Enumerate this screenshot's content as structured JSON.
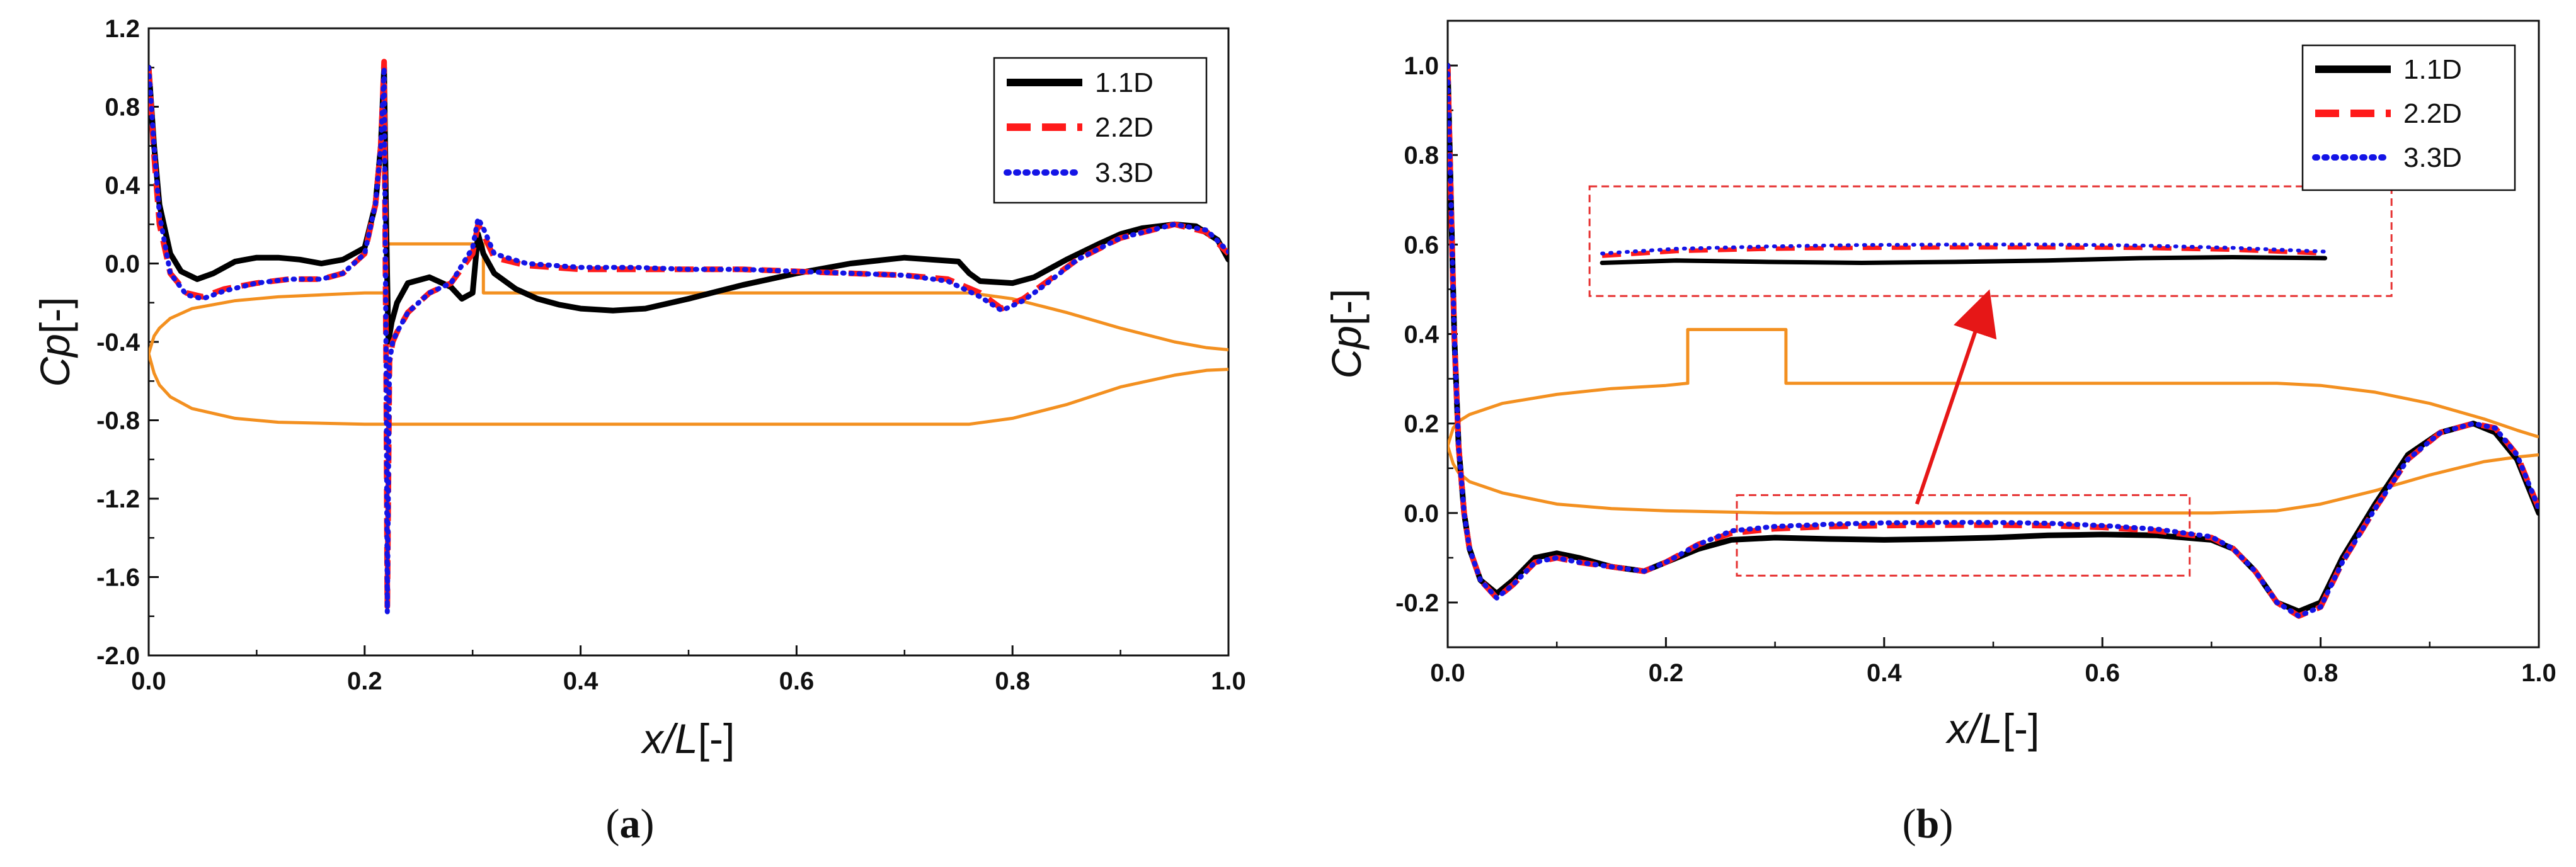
{
  "chart_data": [
    {
      "type": "line",
      "panel_label": "a",
      "xlabel_main": "x/L",
      "xlabel_unit": "[-]",
      "ylabel_main": "Cp",
      "ylabel_unit": "[-]",
      "xlim": [
        0.0,
        1.0
      ],
      "ylim": [
        -2.0,
        1.2
      ],
      "xticks": [
        0.0,
        0.2,
        0.4,
        0.6,
        0.8,
        1.0
      ],
      "xtick_labels": [
        "0.0",
        "0.2",
        "0.4",
        "0.6",
        "0.8",
        "1.0"
      ],
      "yticks": [
        -2.0,
        -1.6,
        -1.2,
        -0.8,
        -0.4,
        0.0,
        0.4,
        0.8,
        1.2
      ],
      "ytick_labels": [
        "-2.0",
        "-1.6",
        "-1.2",
        "-0.8",
        "-0.4",
        "0.0",
        "0.4",
        "0.8",
        "1.2"
      ],
      "legend_position": "top-right",
      "series": [
        {
          "name": "1.1D",
          "color": "#000000",
          "style": "solid",
          "x": [
            0.0,
            0.005,
            0.01,
            0.02,
            0.03,
            0.045,
            0.06,
            0.08,
            0.1,
            0.12,
            0.14,
            0.16,
            0.18,
            0.2,
            0.21,
            0.215,
            0.218,
            0.22,
            0.222,
            0.225,
            0.23,
            0.24,
            0.26,
            0.28,
            0.29,
            0.3,
            0.305,
            0.31,
            0.32,
            0.34,
            0.36,
            0.38,
            0.4,
            0.43,
            0.46,
            0.5,
            0.55,
            0.6,
            0.65,
            0.7,
            0.75,
            0.76,
            0.77,
            0.8,
            0.82,
            0.85,
            0.88,
            0.9,
            0.92,
            0.95,
            0.97,
            0.99,
            1.0
          ],
          "y": [
            1.0,
            0.6,
            0.3,
            0.05,
            -0.04,
            -0.08,
            -0.05,
            0.01,
            0.03,
            0.03,
            0.02,
            0.0,
            0.02,
            0.08,
            0.3,
            0.6,
            1.0,
            0.2,
            -0.4,
            -0.3,
            -0.2,
            -0.1,
            -0.07,
            -0.12,
            -0.18,
            -0.15,
            0.15,
            0.05,
            -0.05,
            -0.13,
            -0.18,
            -0.21,
            -0.23,
            -0.24,
            -0.23,
            -0.18,
            -0.11,
            -0.05,
            0.0,
            0.03,
            0.01,
            -0.05,
            -0.09,
            -0.1,
            -0.07,
            0.02,
            0.1,
            0.15,
            0.18,
            0.2,
            0.19,
            0.12,
            0.02
          ]
        },
        {
          "name": "2.2D",
          "color": "#ff1a1a",
          "style": "dashed",
          "x": [
            0.0,
            0.005,
            0.01,
            0.02,
            0.035,
            0.05,
            0.07,
            0.1,
            0.13,
            0.16,
            0.18,
            0.2,
            0.21,
            0.215,
            0.218,
            0.22,
            0.221,
            0.223,
            0.226,
            0.23,
            0.24,
            0.26,
            0.28,
            0.3,
            0.305,
            0.31,
            0.32,
            0.35,
            0.4,
            0.45,
            0.5,
            0.55,
            0.6,
            0.65,
            0.7,
            0.74,
            0.77,
            0.79,
            0.81,
            0.83,
            0.86,
            0.9,
            0.95,
            0.98,
            1.0
          ],
          "y": [
            1.0,
            0.55,
            0.2,
            -0.05,
            -0.15,
            -0.17,
            -0.13,
            -0.1,
            -0.08,
            -0.08,
            -0.05,
            0.05,
            0.3,
            0.6,
            1.03,
            -0.6,
            -1.75,
            -0.5,
            -0.4,
            -0.35,
            -0.25,
            -0.15,
            -0.1,
            0.05,
            0.2,
            0.15,
            0.03,
            -0.01,
            -0.03,
            -0.03,
            -0.03,
            -0.03,
            -0.04,
            -0.05,
            -0.06,
            -0.08,
            -0.15,
            -0.23,
            -0.18,
            -0.1,
            0.02,
            0.13,
            0.2,
            0.16,
            0.05
          ]
        },
        {
          "name": "3.3D",
          "color": "#1414e6",
          "style": "dotted",
          "x": [
            0.0,
            0.005,
            0.01,
            0.02,
            0.035,
            0.05,
            0.07,
            0.1,
            0.13,
            0.16,
            0.18,
            0.2,
            0.21,
            0.215,
            0.218,
            0.22,
            0.221,
            0.223,
            0.226,
            0.23,
            0.24,
            0.26,
            0.28,
            0.3,
            0.305,
            0.31,
            0.32,
            0.35,
            0.4,
            0.45,
            0.5,
            0.55,
            0.6,
            0.65,
            0.7,
            0.74,
            0.77,
            0.79,
            0.81,
            0.83,
            0.86,
            0.9,
            0.95,
            0.98,
            1.0
          ],
          "y": [
            1.0,
            0.6,
            0.25,
            -0.05,
            -0.16,
            -0.18,
            -0.14,
            -0.1,
            -0.08,
            -0.08,
            -0.05,
            0.05,
            0.3,
            0.6,
            1.0,
            -0.6,
            -1.78,
            -0.5,
            -0.4,
            -0.35,
            -0.25,
            -0.15,
            -0.1,
            0.08,
            0.23,
            0.18,
            0.05,
            0.0,
            -0.02,
            -0.02,
            -0.03,
            -0.03,
            -0.04,
            -0.05,
            -0.06,
            -0.09,
            -0.17,
            -0.24,
            -0.19,
            -0.11,
            0.02,
            0.13,
            0.2,
            0.17,
            0.06
          ]
        }
      ],
      "overlay_shape": {
        "color": "#f39020",
        "upper": {
          "x": [
            0.0,
            0.005,
            0.01,
            0.02,
            0.04,
            0.08,
            0.12,
            0.16,
            0.2,
            0.22,
            0.22,
            0.31,
            0.31,
            0.76,
            0.8,
            0.85,
            0.9,
            0.95,
            0.98,
            1.0
          ],
          "y": [
            -0.46,
            -0.37,
            -0.33,
            -0.28,
            -0.23,
            -0.19,
            -0.17,
            -0.16,
            -0.15,
            -0.15,
            0.1,
            0.1,
            -0.15,
            -0.15,
            -0.18,
            -0.25,
            -0.33,
            -0.4,
            -0.43,
            -0.44
          ]
        },
        "lower": {
          "x": [
            0.0,
            0.005,
            0.01,
            0.02,
            0.04,
            0.08,
            0.12,
            0.2,
            0.3,
            0.5,
            0.7,
            0.76,
            0.8,
            0.85,
            0.9,
            0.95,
            0.98,
            1.0
          ],
          "y": [
            -0.46,
            -0.56,
            -0.62,
            -0.68,
            -0.74,
            -0.79,
            -0.81,
            -0.82,
            -0.82,
            -0.82,
            -0.82,
            -0.82,
            -0.79,
            -0.72,
            -0.63,
            -0.57,
            -0.545,
            -0.54
          ]
        }
      }
    },
    {
      "type": "line",
      "panel_label": "b",
      "xlabel_main": "x/L",
      "xlabel_unit": "[-]",
      "ylabel_main": "Cp",
      "ylabel_unit": "[-]",
      "xlim": [
        0.0,
        1.0
      ],
      "ylim": [
        -0.3,
        1.1
      ],
      "xticks": [
        0.0,
        0.2,
        0.4,
        0.6,
        0.8,
        1.0
      ],
      "xtick_labels": [
        "0.0",
        "0.2",
        "0.4",
        "0.6",
        "0.8",
        "1.0"
      ],
      "yticks": [
        -0.2,
        0.0,
        0.2,
        0.4,
        0.6,
        0.8,
        1.0
      ],
      "ytick_labels": [
        "-0.2",
        "0.0",
        "0.2",
        "0.4",
        "0.6",
        "0.8",
        "1.0"
      ],
      "legend_position": "top-right",
      "series": [
        {
          "name": "1.1D",
          "color": "#000000",
          "style": "solid",
          "x": [
            0.0,
            0.003,
            0.006,
            0.01,
            0.015,
            0.02,
            0.03,
            0.045,
            0.06,
            0.08,
            0.1,
            0.12,
            0.15,
            0.18,
            0.2,
            0.23,
            0.26,
            0.3,
            0.35,
            0.4,
            0.45,
            0.5,
            0.55,
            0.6,
            0.65,
            0.7,
            0.72,
            0.74,
            0.76,
            0.78,
            0.8,
            0.82,
            0.85,
            0.88,
            0.91,
            0.94,
            0.96,
            0.98,
            1.0
          ],
          "y": [
            1.0,
            0.7,
            0.4,
            0.15,
            0.0,
            -0.08,
            -0.15,
            -0.18,
            -0.15,
            -0.1,
            -0.09,
            -0.1,
            -0.12,
            -0.13,
            -0.11,
            -0.08,
            -0.06,
            -0.055,
            -0.058,
            -0.06,
            -0.058,
            -0.055,
            -0.05,
            -0.048,
            -0.05,
            -0.06,
            -0.08,
            -0.13,
            -0.2,
            -0.22,
            -0.2,
            -0.1,
            0.02,
            0.13,
            0.18,
            0.2,
            0.18,
            0.12,
            0.0
          ]
        },
        {
          "name": "2.2D",
          "color": "#ff1a1a",
          "style": "dashed",
          "x": [
            0.0,
            0.003,
            0.006,
            0.01,
            0.015,
            0.02,
            0.03,
            0.045,
            0.06,
            0.08,
            0.1,
            0.12,
            0.15,
            0.18,
            0.2,
            0.23,
            0.26,
            0.3,
            0.35,
            0.4,
            0.45,
            0.5,
            0.55,
            0.6,
            0.65,
            0.7,
            0.72,
            0.74,
            0.76,
            0.78,
            0.8,
            0.82,
            0.85,
            0.88,
            0.91,
            0.94,
            0.96,
            0.98,
            1.0
          ],
          "y": [
            1.0,
            0.7,
            0.4,
            0.15,
            0.0,
            -0.08,
            -0.15,
            -0.19,
            -0.16,
            -0.11,
            -0.1,
            -0.11,
            -0.12,
            -0.13,
            -0.11,
            -0.07,
            -0.045,
            -0.035,
            -0.03,
            -0.028,
            -0.027,
            -0.027,
            -0.028,
            -0.032,
            -0.04,
            -0.055,
            -0.08,
            -0.13,
            -0.2,
            -0.23,
            -0.21,
            -0.11,
            0.01,
            0.12,
            0.18,
            0.2,
            0.19,
            0.13,
            0.01
          ]
        },
        {
          "name": "3.3D",
          "color": "#1414e6",
          "style": "dotted",
          "x": [
            0.0,
            0.003,
            0.006,
            0.01,
            0.015,
            0.02,
            0.03,
            0.045,
            0.06,
            0.08,
            0.1,
            0.12,
            0.15,
            0.18,
            0.2,
            0.23,
            0.26,
            0.3,
            0.35,
            0.4,
            0.45,
            0.5,
            0.55,
            0.6,
            0.65,
            0.7,
            0.72,
            0.74,
            0.76,
            0.78,
            0.8,
            0.82,
            0.85,
            0.88,
            0.91,
            0.94,
            0.96,
            0.98,
            1.0
          ],
          "y": [
            1.0,
            0.7,
            0.4,
            0.15,
            0.0,
            -0.08,
            -0.15,
            -0.19,
            -0.16,
            -0.11,
            -0.1,
            -0.11,
            -0.12,
            -0.13,
            -0.11,
            -0.07,
            -0.04,
            -0.03,
            -0.025,
            -0.022,
            -0.021,
            -0.021,
            -0.023,
            -0.028,
            -0.036,
            -0.053,
            -0.08,
            -0.13,
            -0.2,
            -0.23,
            -0.21,
            -0.11,
            0.01,
            0.12,
            0.18,
            0.2,
            0.19,
            0.13,
            0.01
          ]
        }
      ],
      "overlay_shape": {
        "color": "#f39020",
        "upper": {
          "x": [
            0.0,
            0.005,
            0.01,
            0.02,
            0.05,
            0.1,
            0.15,
            0.2,
            0.22,
            0.22,
            0.31,
            0.31,
            0.5,
            0.7,
            0.76,
            0.8,
            0.85,
            0.9,
            0.95,
            0.98,
            1.0
          ],
          "y": [
            0.15,
            0.19,
            0.205,
            0.22,
            0.245,
            0.265,
            0.278,
            0.285,
            0.29,
            0.41,
            0.41,
            0.29,
            0.29,
            0.29,
            0.29,
            0.285,
            0.27,
            0.245,
            0.21,
            0.185,
            0.17
          ]
        },
        "lower": {
          "x": [
            0.0,
            0.005,
            0.01,
            0.02,
            0.05,
            0.1,
            0.15,
            0.2,
            0.3,
            0.5,
            0.7,
            0.76,
            0.8,
            0.85,
            0.9,
            0.95,
            0.98,
            1.0
          ],
          "y": [
            0.15,
            0.11,
            0.09,
            0.07,
            0.045,
            0.02,
            0.01,
            0.005,
            0.0,
            0.0,
            0.0,
            0.005,
            0.02,
            0.05,
            0.085,
            0.115,
            0.125,
            0.13
          ]
        }
      },
      "zoom_inset": {
        "source_xlim": [
          0.265,
          0.68
        ],
        "source_ylim": [
          -0.14,
          0.04
        ],
        "target_xlim": [
          0.13,
          0.865
        ],
        "target_ylim": [
          0.485,
          0.73
        ],
        "arrow_from": [
          0.43,
          0.02
        ],
        "arrow_to": [
          0.49,
          0.48
        ],
        "arrow_color": "#e61717",
        "box_color": "#e63232"
      }
    }
  ]
}
